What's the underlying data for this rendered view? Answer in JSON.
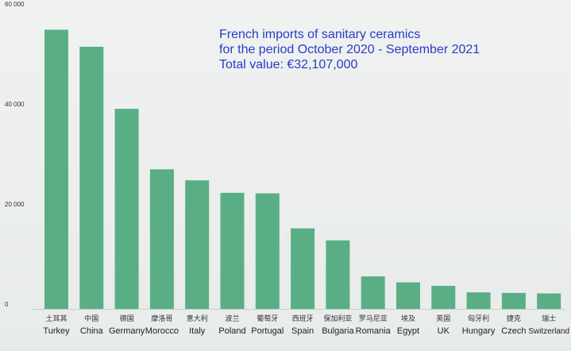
{
  "chart_data": {
    "type": "bar",
    "title": "French imports of sanitary ceramics",
    "subtitle": "for the period October 2020 - September 2021",
    "total": "Total value: €32,107,000",
    "xlabel": "",
    "ylabel": "",
    "categories": [
      "Turkey",
      "China",
      "Germany",
      "Morocco",
      "Italy",
      "Poland",
      "Portugal",
      "Spain",
      "Bulgaria",
      "Romania",
      "Egypt",
      "UK",
      "Hungary",
      "Czech",
      "Switzerland"
    ],
    "categories_zh": [
      "土耳其",
      "中国",
      "德国",
      "摩洛哥",
      "意大利",
      "波兰",
      "葡萄牙",
      "西班牙",
      "保加利亚",
      "罗马尼亚",
      "埃及",
      "英国",
      "匈牙利",
      "捷克",
      "瑞士"
    ],
    "values": [
      55800,
      52400,
      40000,
      27900,
      25700,
      23200,
      23100,
      16100,
      13700,
      6500,
      5300,
      4600,
      3300,
      3200,
      3100
    ],
    "yticks": [
      "0",
      "20 000",
      "40 000",
      "60 000"
    ],
    "ylim": [
      0,
      62000
    ],
    "grid": false,
    "colors": {
      "bar": "#5aae86",
      "title": "#2b39c8",
      "axis_text": "#333333"
    }
  }
}
